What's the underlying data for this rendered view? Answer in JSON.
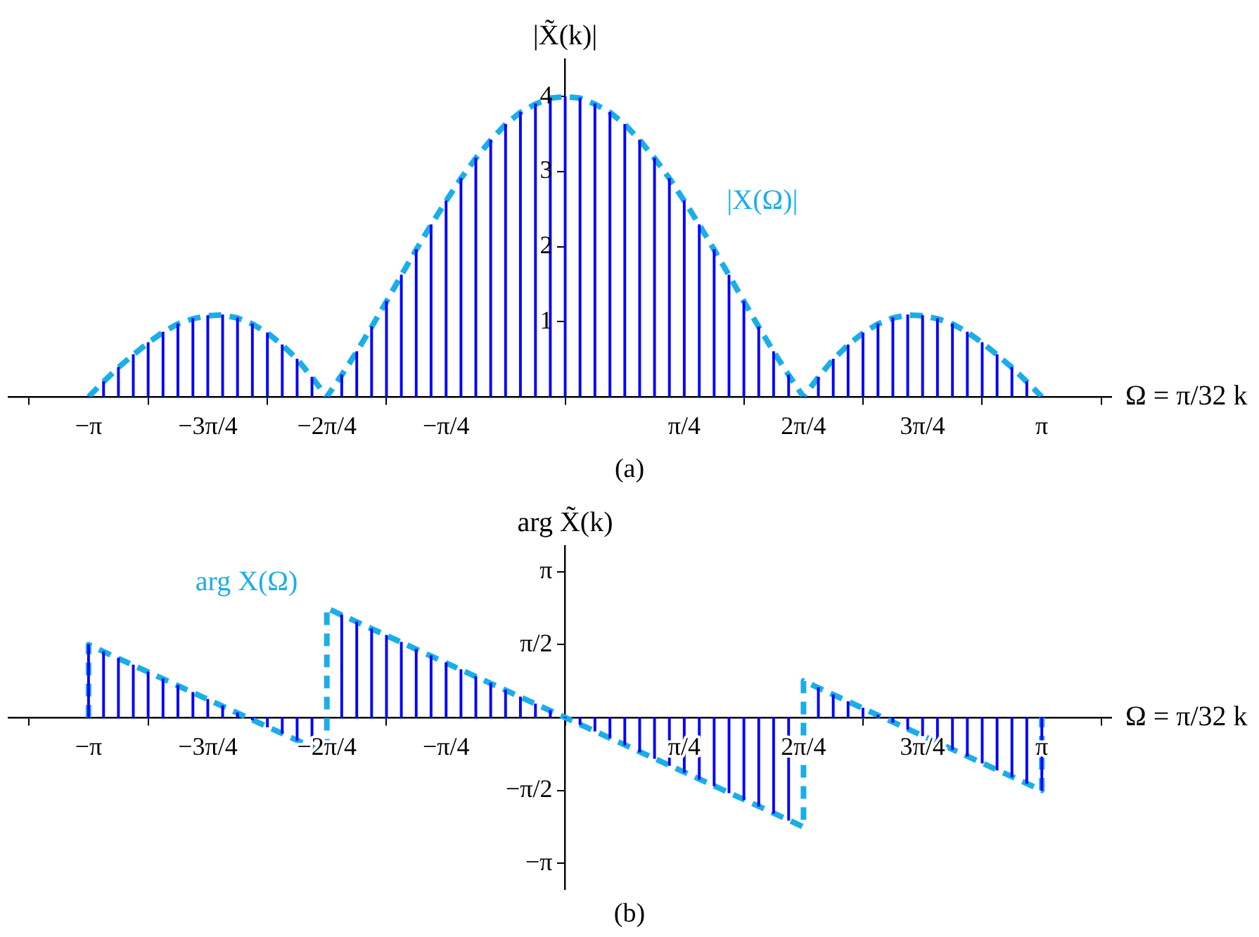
{
  "chart_data": [
    {
      "type": "bar",
      "xlabel": "Ω = π/32 k",
      "ylabel": "|X̃(k)|",
      "xlim": [
        -3.67,
        3.6
      ],
      "ylim": [
        0,
        4.5
      ],
      "xticks": [
        {
          "value": -3.142,
          "label": "−π"
        },
        {
          "value": -2.356,
          "label": "−3π/4"
        },
        {
          "value": -1.571,
          "label": "−2π/4"
        },
        {
          "value": -0.785,
          "label": "−π/4"
        },
        {
          "value": 0.785,
          "label": "π/4"
        },
        {
          "value": 1.571,
          "label": "2π/4"
        },
        {
          "value": 2.356,
          "label": "3π/4"
        },
        {
          "value": 3.142,
          "label": "π"
        }
      ],
      "yticks": [
        1,
        2,
        3,
        4
      ],
      "marker": "none",
      "line_style": "dashed",
      "series": [
        {
          "color": "#0000ff",
          "x": [
            -3.142,
            -3.043,
            -2.945,
            -2.847,
            -2.749,
            -2.651,
            -2.553,
            -2.454,
            -2.356,
            -2.258,
            -2.16,
            -2.062,
            -1.963,
            -1.865,
            -1.767,
            -1.669,
            -1.571,
            -1.473,
            -1.374,
            -1.276,
            -1.178,
            -1.08,
            -0.982,
            -0.884,
            -0.785,
            -0.687,
            -0.589,
            -0.491,
            -0.393,
            -0.295,
            -0.196,
            -0.098,
            0,
            0.098,
            0.196,
            0.295,
            0.393,
            0.491,
            0.589,
            0.687,
            0.785,
            0.884,
            0.982,
            1.08,
            1.178,
            1.276,
            1.374,
            1.473,
            1.571,
            1.669,
            1.767,
            1.865,
            1.963,
            2.062,
            2.16,
            2.258,
            2.356,
            2.454,
            2.553,
            2.651,
            2.749,
            2.847,
            2.945,
            3.043,
            3.142
          ],
          "values": [
            0,
            0.2,
            0.39,
            0.56,
            0.72,
            0.86,
            0.97,
            1.04,
            1.08,
            1.09,
            1.05,
            0.97,
            0.85,
            0.69,
            0.5,
            0.26,
            0,
            0.29,
            0.6,
            0.93,
            1.27,
            1.62,
            1.96,
            2.29,
            2.61,
            2.91,
            3.18,
            3.42,
            3.63,
            3.79,
            3.9,
            3.98,
            4,
            3.98,
            3.9,
            3.79,
            3.63,
            3.42,
            3.18,
            2.91,
            2.61,
            2.29,
            1.96,
            1.62,
            1.27,
            0.93,
            0.6,
            0.29,
            0,
            0.26,
            0.5,
            0.69,
            0.85,
            0.97,
            1.05,
            1.09,
            1.08,
            1.04,
            0.97,
            0.86,
            0.72,
            0.56,
            0.39,
            0.2,
            0
          ]
        },
        {
          "type": "line",
          "name": "|X(Ω)|",
          "color": "#1aaee8",
          "x": [
            -3.142,
            -3.043,
            -2.945,
            -2.847,
            -2.749,
            -2.651,
            -2.553,
            -2.454,
            -2.356,
            -2.258,
            -2.16,
            -2.062,
            -1.963,
            -1.865,
            -1.767,
            -1.669,
            -1.571,
            -1.473,
            -1.374,
            -1.276,
            -1.178,
            -1.08,
            -0.982,
            -0.884,
            -0.785,
            -0.687,
            -0.589,
            -0.491,
            -0.393,
            -0.295,
            -0.196,
            -0.098,
            0,
            0.098,
            0.196,
            0.295,
            0.393,
            0.491,
            0.589,
            0.687,
            0.785,
            0.884,
            0.982,
            1.08,
            1.178,
            1.276,
            1.374,
            1.473,
            1.571,
            1.669,
            1.767,
            1.865,
            1.963,
            2.062,
            2.16,
            2.258,
            2.356,
            2.454,
            2.553,
            2.651,
            2.749,
            2.847,
            2.945,
            3.043,
            3.142
          ],
          "values": [
            0,
            0.2,
            0.39,
            0.56,
            0.72,
            0.86,
            0.97,
            1.04,
            1.08,
            1.09,
            1.05,
            0.97,
            0.85,
            0.69,
            0.5,
            0.26,
            0,
            0.29,
            0.6,
            0.93,
            1.27,
            1.62,
            1.96,
            2.29,
            2.61,
            2.91,
            3.18,
            3.42,
            3.63,
            3.79,
            3.9,
            3.98,
            4,
            3.98,
            3.9,
            3.79,
            3.63,
            3.42,
            3.18,
            2.91,
            2.61,
            2.29,
            1.96,
            1.62,
            1.27,
            0.93,
            0.6,
            0.29,
            0,
            0.26,
            0.5,
            0.69,
            0.85,
            0.97,
            1.05,
            1.09,
            1.08,
            1.04,
            0.97,
            0.86,
            0.72,
            0.56,
            0.39,
            0.2,
            0
          ]
        }
      ],
      "annotations": [
        "(a)"
      ]
    },
    {
      "type": "bar",
      "xlabel": "Ω = π/32 k",
      "ylabel": "arg X̃(k)",
      "xlim": [
        -3.67,
        3.6
      ],
      "ylim": [
        -3.7,
        3.7
      ],
      "xticks": [
        {
          "value": -3.142,
          "label": "−π"
        },
        {
          "value": -2.356,
          "label": "−3π/4"
        },
        {
          "value": -1.571,
          "label": "−2π/4"
        },
        {
          "value": -0.785,
          "label": "−π/4"
        },
        {
          "value": 0.785,
          "label": "π/4"
        },
        {
          "value": 1.571,
          "label": "2π/4"
        },
        {
          "value": 2.356,
          "label": "3π/4"
        },
        {
          "value": 3.142,
          "label": "π"
        }
      ],
      "yticks": [
        {
          "value": 3.142,
          "label": "π"
        },
        {
          "value": 1.571,
          "label": "π/2"
        },
        {
          "value": -1.571,
          "label": "−π/2"
        },
        {
          "value": -3.142,
          "label": "−π"
        }
      ],
      "marker": "none",
      "line_style": "dashed",
      "series": [
        {
          "color": "#0000ff",
          "x": [
            -3.142,
            -3.043,
            -2.945,
            -2.847,
            -2.749,
            -2.651,
            -2.553,
            -2.454,
            -2.356,
            -2.258,
            -2.16,
            -2.062,
            -1.963,
            -1.865,
            -1.767,
            -1.669,
            -1.571,
            -1.473,
            -1.374,
            -1.276,
            -1.178,
            -1.08,
            -0.982,
            -0.884,
            -0.785,
            -0.687,
            -0.589,
            -0.491,
            -0.393,
            -0.295,
            -0.196,
            -0.098,
            0,
            0.098,
            0.196,
            0.295,
            0.393,
            0.491,
            0.589,
            0.687,
            0.785,
            0.884,
            0.982,
            1.08,
            1.178,
            1.276,
            1.374,
            1.473,
            1.571,
            1.669,
            1.767,
            1.865,
            1.963,
            2.062,
            2.16,
            2.258,
            2.356,
            2.454,
            2.553,
            2.651,
            2.749,
            2.847,
            2.945,
            3.043,
            3.142
          ],
          "values": [
            1.57,
            1.42,
            1.28,
            1.13,
            0.98,
            0.83,
            0.69,
            0.54,
            0.39,
            0.25,
            0.1,
            -0.05,
            -0.2,
            -0.34,
            -0.49,
            -0.64,
            null,
            2.21,
            2.06,
            1.91,
            1.77,
            1.62,
            1.47,
            1.33,
            1.18,
            1.03,
            0.88,
            0.74,
            0.59,
            0.44,
            0.29,
            0.15,
            0,
            -0.15,
            -0.29,
            -0.44,
            -0.59,
            -0.74,
            -0.88,
            -1.03,
            -1.18,
            -1.33,
            -1.47,
            -1.62,
            -1.77,
            -1.91,
            -2.06,
            -2.21,
            null,
            0.64,
            0.49,
            0.34,
            0.2,
            0.05,
            -0.1,
            -0.25,
            -0.39,
            -0.54,
            -0.69,
            -0.83,
            -0.98,
            -1.13,
            -1.28,
            -1.42,
            -1.57
          ]
        },
        {
          "type": "line",
          "name": "arg X(Ω)",
          "color": "#1aaee8",
          "x": [
            -3.142,
            -3.142,
            -1.669,
            -1.571,
            -1.571,
            -1.473,
            1.473,
            1.571,
            1.571,
            1.669,
            3.142,
            3.142
          ],
          "values": [
            0,
            1.57,
            -0.64,
            -0.79,
            2.36,
            2.21,
            -2.21,
            -2.36,
            0.79,
            0.64,
            -1.57,
            0
          ]
        }
      ],
      "annotations": [
        "(b)"
      ]
    }
  ]
}
